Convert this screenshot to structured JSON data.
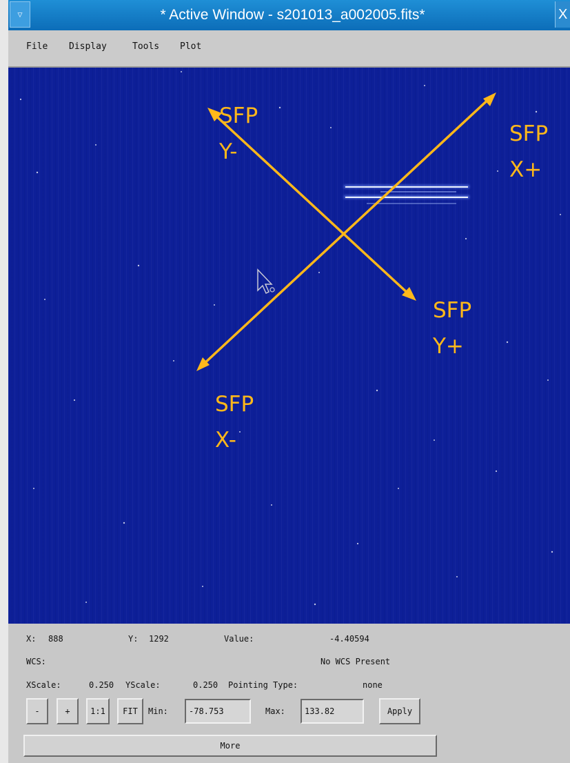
{
  "window": {
    "title": "* Active Window - s201013_a002005.fits*",
    "menu_glyph": "▽",
    "close_glyph": "X"
  },
  "menu": [
    "File",
    "Display",
    "Tools",
    "Plot"
  ],
  "annotations": {
    "y_minus": [
      "SFP",
      "Y-"
    ],
    "x_plus": [
      "SFP",
      "X+"
    ],
    "y_plus": [
      "SFP",
      "Y+"
    ],
    "x_minus": [
      "SFP",
      "X-"
    ],
    "color": "#ffb81a"
  },
  "image": {
    "background_color": "#0d1f98"
  },
  "status": {
    "x_label": "X:",
    "x_value": "888",
    "y_label": "Y:",
    "y_value": "1292",
    "value_label": "Value:",
    "value": "-4.40594",
    "wcs_label": "WCS:",
    "wcs_value": "No WCS Present",
    "xscale_label": "XScale:",
    "xscale_value": "0.250",
    "yscale_label": "YScale:",
    "yscale_value": "0.250",
    "pointing_label": "Pointing Type:",
    "pointing_value": "none"
  },
  "controls": {
    "minus": "-",
    "plus": "+",
    "one_to_one": "1:1",
    "fit": "FIT",
    "min_label": "Min:",
    "min_value": "-78.753",
    "max_label": "Max:",
    "max_value": "133.82",
    "apply": "Apply",
    "more": "More"
  }
}
